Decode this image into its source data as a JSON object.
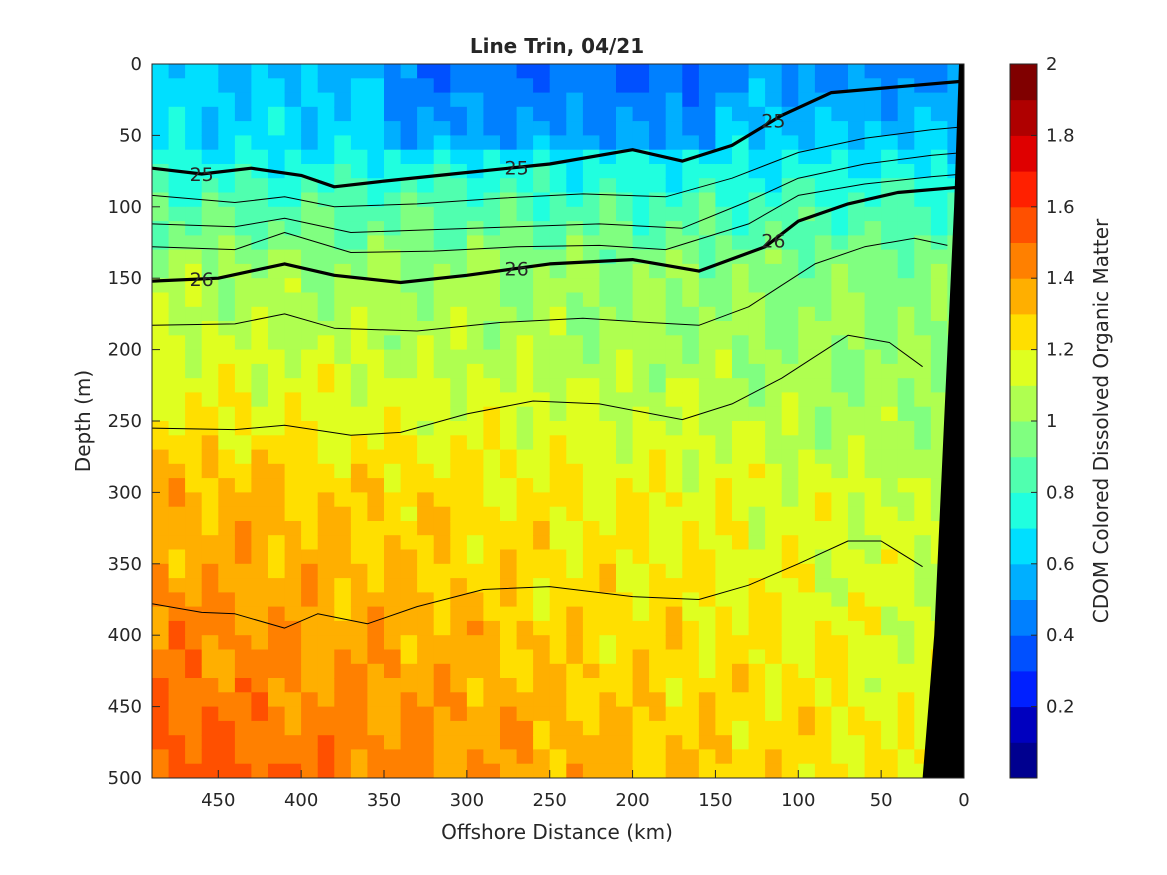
{
  "chart_data": {
    "type": "heatmap",
    "title": "Line Trin, 04/21",
    "xlabel": "Offshore Distance (km)",
    "ylabel": "Depth (m)",
    "colorbar_label": "CDOM Colored Dissolved Organic Matter",
    "xlim": [
      490,
      0
    ],
    "ylim": [
      500,
      0
    ],
    "x_ticks": [
      450,
      400,
      350,
      300,
      250,
      200,
      150,
      100,
      50,
      0
    ],
    "y_ticks": [
      0,
      50,
      100,
      150,
      200,
      250,
      300,
      350,
      400,
      450,
      500
    ],
    "colorbar_range": [
      0,
      2
    ],
    "colorbar_ticks": [
      0.2,
      0.4,
      0.6,
      0.8,
      1,
      1.2,
      1.4,
      1.6,
      1.8,
      2
    ],
    "colormap": [
      "#00008F",
      "#0000BF",
      "#0020FF",
      "#0050FF",
      "#0080FF",
      "#00AFFF",
      "#00DFFF",
      "#20FFDF",
      "#50FFAF",
      "#80FF80",
      "#AFFF50",
      "#DFFF20",
      "#FFDF00",
      "#FFAF00",
      "#FF8000",
      "#FF5000",
      "#FF2000",
      "#DF0000",
      "#AF0000",
      "#800000"
    ],
    "terrain_color": "#000000",
    "shelf_boundary": [
      [
        3,
        0
      ],
      [
        6,
        100
      ],
      [
        12,
        250
      ],
      [
        18,
        400
      ],
      [
        25,
        500
      ]
    ],
    "field_profile": {
      "depths": [
        0,
        50,
        100,
        150,
        200,
        250,
        300,
        350,
        400,
        450,
        500
      ],
      "offshore_far": [
        0.6,
        0.65,
        0.88,
        1.05,
        1.12,
        1.22,
        1.35,
        1.38,
        1.45,
        1.5,
        1.55
      ],
      "nearshore": [
        0.45,
        0.6,
        0.82,
        0.95,
        1.0,
        1.02,
        1.08,
        1.1,
        1.12,
        1.15,
        1.18
      ]
    },
    "isopycnals": [
      {
        "label": "25",
        "bold": true,
        "label_x": [
          460,
          270,
          115
        ],
        "points": [
          [
            490,
            73
          ],
          [
            460,
            77
          ],
          [
            430,
            73
          ],
          [
            400,
            78
          ],
          [
            380,
            86
          ],
          [
            350,
            82
          ],
          [
            300,
            76
          ],
          [
            250,
            70
          ],
          [
            200,
            60
          ],
          [
            170,
            68
          ],
          [
            140,
            57
          ],
          [
            110,
            36
          ],
          [
            80,
            20
          ],
          [
            40,
            16
          ],
          [
            0,
            12
          ]
        ]
      },
      {
        "label": "26",
        "bold": true,
        "label_x": [
          460,
          270,
          115
        ],
        "points": [
          [
            490,
            152
          ],
          [
            450,
            150
          ],
          [
            410,
            140
          ],
          [
            380,
            148
          ],
          [
            340,
            153
          ],
          [
            300,
            148
          ],
          [
            250,
            140
          ],
          [
            200,
            137
          ],
          [
            160,
            145
          ],
          [
            120,
            128
          ],
          [
            100,
            110
          ],
          [
            70,
            98
          ],
          [
            40,
            90
          ],
          [
            0,
            86
          ]
        ]
      },
      {
        "bold": false,
        "points": [
          [
            490,
            92
          ],
          [
            440,
            97
          ],
          [
            410,
            93
          ],
          [
            380,
            100
          ],
          [
            330,
            98
          ],
          [
            280,
            94
          ],
          [
            230,
            91
          ],
          [
            180,
            93
          ],
          [
            140,
            80
          ],
          [
            100,
            62
          ],
          [
            60,
            52
          ],
          [
            20,
            46
          ],
          [
            0,
            44
          ]
        ]
      },
      {
        "bold": false,
        "points": [
          [
            490,
            112
          ],
          [
            440,
            114
          ],
          [
            410,
            108
          ],
          [
            370,
            118
          ],
          [
            320,
            116
          ],
          [
            270,
            114
          ],
          [
            220,
            112
          ],
          [
            170,
            115
          ],
          [
            130,
            96
          ],
          [
            100,
            80
          ],
          [
            60,
            70
          ],
          [
            20,
            64
          ],
          [
            0,
            62
          ]
        ]
      },
      {
        "bold": false,
        "points": [
          [
            490,
            128
          ],
          [
            440,
            130
          ],
          [
            410,
            118
          ],
          [
            370,
            132
          ],
          [
            320,
            131
          ],
          [
            270,
            128
          ],
          [
            220,
            127
          ],
          [
            180,
            130
          ],
          [
            130,
            112
          ],
          [
            100,
            92
          ],
          [
            60,
            84
          ],
          [
            20,
            79
          ],
          [
            0,
            77
          ]
        ]
      },
      {
        "bold": false,
        "points": [
          [
            490,
            183
          ],
          [
            440,
            182
          ],
          [
            410,
            175
          ],
          [
            380,
            185
          ],
          [
            330,
            187
          ],
          [
            280,
            181
          ],
          [
            230,
            178
          ],
          [
            190,
            181
          ],
          [
            160,
            183
          ],
          [
            130,
            170
          ],
          [
            110,
            155
          ],
          [
            90,
            140
          ],
          [
            60,
            128
          ],
          [
            30,
            122
          ],
          [
            10,
            127
          ]
        ]
      },
      {
        "bold": false,
        "points": [
          [
            490,
            255
          ],
          [
            440,
            256
          ],
          [
            410,
            253
          ],
          [
            370,
            260
          ],
          [
            340,
            258
          ],
          [
            300,
            245
          ],
          [
            260,
            236
          ],
          [
            220,
            238
          ],
          [
            170,
            249
          ],
          [
            140,
            238
          ],
          [
            110,
            220
          ],
          [
            90,
            205
          ],
          [
            70,
            190
          ],
          [
            45,
            195
          ],
          [
            25,
            212
          ]
        ]
      },
      {
        "bold": false,
        "points": [
          [
            490,
            378
          ],
          [
            460,
            384
          ],
          [
            440,
            385
          ],
          [
            410,
            395
          ],
          [
            390,
            385
          ],
          [
            360,
            392
          ],
          [
            330,
            380
          ],
          [
            290,
            368
          ],
          [
            250,
            366
          ],
          [
            200,
            373
          ],
          [
            160,
            375
          ],
          [
            130,
            365
          ],
          [
            100,
            350
          ],
          [
            70,
            334
          ],
          [
            50,
            334
          ],
          [
            25,
            352
          ]
        ]
      }
    ]
  }
}
